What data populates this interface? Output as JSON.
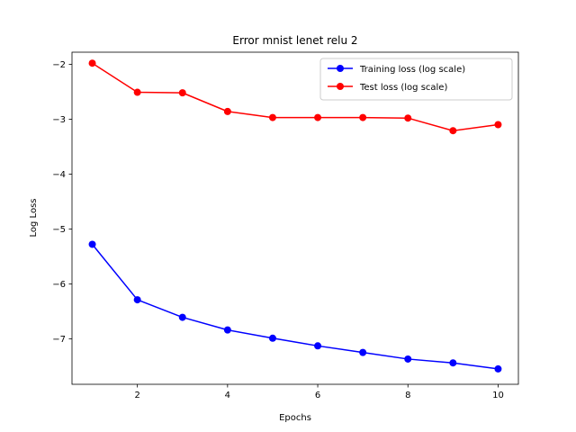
{
  "chart_data": {
    "type": "line",
    "title": "Error mnist lenet relu 2",
    "xlabel": "Epochs",
    "ylabel": "Log Loss",
    "x": [
      1,
      2,
      3,
      4,
      5,
      6,
      7,
      8,
      9,
      10
    ],
    "xticks": [
      2,
      4,
      6,
      8,
      10
    ],
    "yticks": [
      -2,
      -3,
      -4,
      -5,
      -6,
      -7
    ],
    "xlim": [
      0.55,
      10.45
    ],
    "ylim": [
      -7.83,
      -1.78
    ],
    "grid": false,
    "legend_position": "top-right",
    "series": [
      {
        "name": "Training loss (log scale)",
        "color": "#0000ff",
        "values": [
          -5.28,
          -6.29,
          -6.61,
          -6.84,
          -6.99,
          -7.13,
          -7.25,
          -7.37,
          -7.44,
          -7.55
        ]
      },
      {
        "name": "Test loss (log scale)",
        "color": "#ff0000",
        "values": [
          -1.98,
          -2.51,
          -2.52,
          -2.86,
          -2.97,
          -2.97,
          -2.97,
          -2.98,
          -3.21,
          -3.1
        ]
      }
    ]
  }
}
